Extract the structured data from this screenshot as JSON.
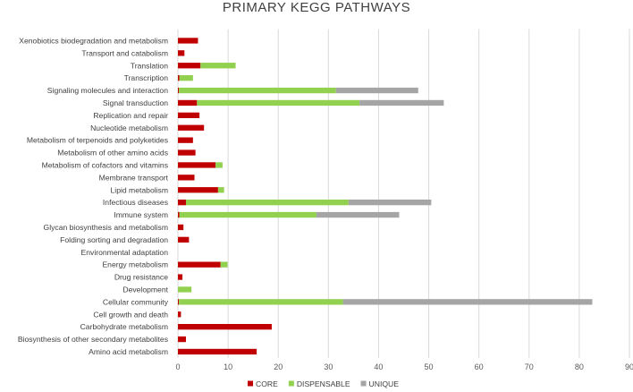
{
  "chart_data": {
    "type": "bar",
    "orientation": "horizontal",
    "stacked": true,
    "title": "PRIMARY KEGG PATHWAYS",
    "categories": [
      "Xenobiotics biodegradation and metabolism",
      "Transport and catabolism",
      "Translation",
      "Transcription",
      "Signaling molecules and interaction",
      "Signal transduction",
      "Replication and repair",
      "Nucleotide metabolism",
      "Metabolism of terpenoids and polyketides",
      "Metabolism of other amino acids",
      "Metabolism of cofactors and vitamins",
      "Membrane transport",
      "Lipid metabolism",
      "Infectious diseases",
      "Immune system",
      "Glycan biosynthesis and metabolism",
      "Folding sorting and degradation",
      "Environmental adaptation",
      "Energy metabolism",
      "Drug resistance",
      "Development",
      "Cellular community",
      "Cell growth and death",
      "Carbohydrate metabolism",
      "Biosynthesis of other secondary metabolites",
      "Amino acid metabolism"
    ],
    "series": [
      {
        "name": "CORE",
        "color": "#c00000",
        "values": [
          4,
          1.3,
          4.5,
          0.3,
          0.2,
          3.8,
          4.3,
          5.2,
          3,
          3.5,
          7.5,
          3.3,
          8,
          1.6,
          0.3,
          1.1,
          2.2,
          0,
          8.5,
          0.9,
          0,
          0.2,
          0.6,
          18.7,
          1.6,
          15.7
        ]
      },
      {
        "name": "DISPENSABLE",
        "color": "#92d050",
        "values": [
          0,
          0,
          7,
          2.7,
          31.3,
          32.4,
          0,
          0,
          0,
          0,
          1.4,
          0,
          1.2,
          32.4,
          27.3,
          0,
          0,
          0,
          1.4,
          0,
          2.7,
          32.7,
          0,
          0,
          0,
          0
        ]
      },
      {
        "name": "UNIQUE",
        "color": "#a5a5a5",
        "values": [
          0,
          0,
          0,
          0,
          16.4,
          16.8,
          0,
          0,
          0,
          0,
          0,
          0,
          0,
          16.5,
          16.5,
          0,
          0,
          0,
          0,
          0,
          0,
          49.7,
          0,
          0,
          0,
          0
        ]
      }
    ],
    "xlim": [
      0,
      90
    ],
    "xticks": [
      "0",
      "10",
      "20",
      "30",
      "40",
      "50",
      "60",
      "70",
      "80",
      "90"
    ],
    "grid": true,
    "legend_position": "bottom"
  }
}
